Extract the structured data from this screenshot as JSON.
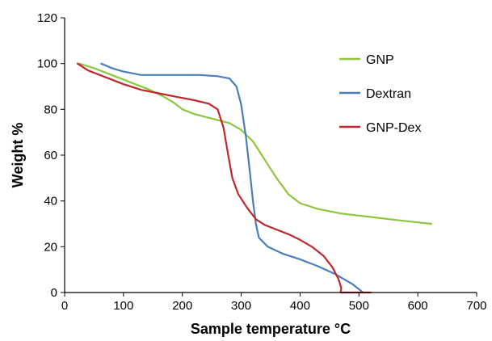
{
  "chart_data": {
    "type": "line",
    "title": "",
    "xlabel": "Sample temperature °C",
    "ylabel": "Weight %",
    "xlim": [
      0,
      700
    ],
    "ylim": [
      0,
      120
    ],
    "x_ticks": [
      "0",
      "100",
      "200",
      "300",
      "400",
      "500",
      "600",
      "700"
    ],
    "y_ticks": [
      "0",
      "20",
      "40",
      "60",
      "80",
      "100",
      "120"
    ],
    "grid": false,
    "legend_position": "top-right",
    "series": [
      {
        "name": "GNP",
        "color": "#8dc63f",
        "points": [
          [
            25,
            100
          ],
          [
            50,
            98
          ],
          [
            80,
            95
          ],
          [
            110,
            92
          ],
          [
            140,
            89
          ],
          [
            165,
            86
          ],
          [
            185,
            83
          ],
          [
            200,
            80
          ],
          [
            220,
            78
          ],
          [
            250,
            76
          ],
          [
            280,
            74
          ],
          [
            300,
            71
          ],
          [
            320,
            66
          ],
          [
            340,
            58
          ],
          [
            360,
            50
          ],
          [
            380,
            43
          ],
          [
            400,
            39
          ],
          [
            430,
            36.5
          ],
          [
            470,
            34.5
          ],
          [
            520,
            33
          ],
          [
            570,
            31.5
          ],
          [
            623,
            30
          ]
        ]
      },
      {
        "name": "Dextran",
        "color": "#4a7ebb",
        "points": [
          [
            62,
            100
          ],
          [
            80,
            98
          ],
          [
            100,
            96.5
          ],
          [
            130,
            95
          ],
          [
            180,
            95
          ],
          [
            230,
            95
          ],
          [
            260,
            94.5
          ],
          [
            280,
            93.5
          ],
          [
            292,
            90
          ],
          [
            300,
            82
          ],
          [
            308,
            68
          ],
          [
            315,
            52
          ],
          [
            320,
            40
          ],
          [
            325,
            30
          ],
          [
            330,
            24
          ],
          [
            345,
            20
          ],
          [
            370,
            17
          ],
          [
            400,
            14.5
          ],
          [
            430,
            11.5
          ],
          [
            460,
            8
          ],
          [
            490,
            3.5
          ],
          [
            507,
            0
          ]
        ]
      },
      {
        "name": "GNP-Dex",
        "color": "#c0272d",
        "points": [
          [
            22,
            100
          ],
          [
            40,
            97
          ],
          [
            70,
            94
          ],
          [
            100,
            91
          ],
          [
            130,
            88.5
          ],
          [
            160,
            87
          ],
          [
            190,
            85.5
          ],
          [
            220,
            84
          ],
          [
            245,
            82.5
          ],
          [
            260,
            80
          ],
          [
            270,
            72
          ],
          [
            278,
            60
          ],
          [
            285,
            50
          ],
          [
            295,
            43
          ],
          [
            310,
            37
          ],
          [
            325,
            32
          ],
          [
            340,
            29.5
          ],
          [
            360,
            27.5
          ],
          [
            380,
            25.5
          ],
          [
            400,
            23
          ],
          [
            420,
            20
          ],
          [
            440,
            16
          ],
          [
            455,
            11
          ],
          [
            465,
            6
          ],
          [
            470,
            2
          ],
          [
            469,
            0
          ],
          [
            474,
            0
          ],
          [
            490,
            0
          ],
          [
            520,
            0
          ]
        ]
      }
    ]
  }
}
